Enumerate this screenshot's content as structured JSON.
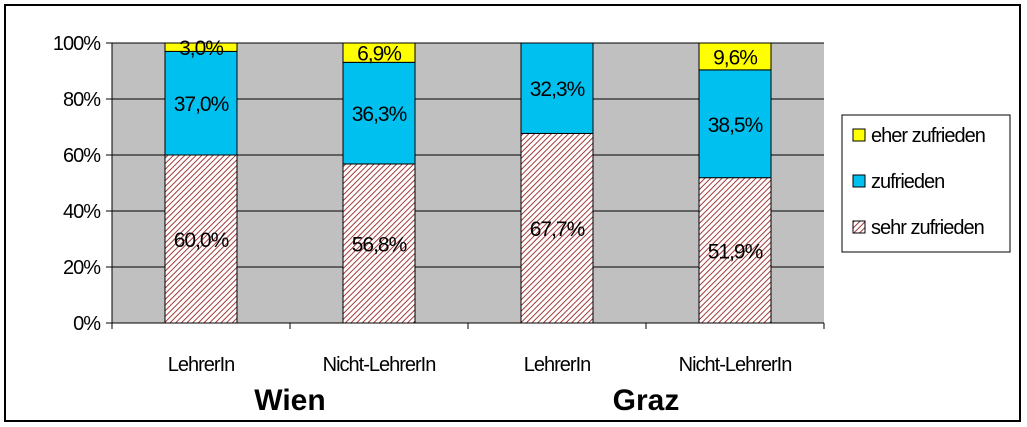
{
  "chart_data": {
    "type": "bar",
    "stacked": true,
    "percent_stacked": true,
    "categories": [
      "LehrerIn",
      "Nicht-LehrerIn",
      "LehrerIn",
      "Nicht-LehrerIn"
    ],
    "groups": [
      {
        "label": "Wien",
        "categories": [
          0,
          1
        ]
      },
      {
        "label": "Graz",
        "categories": [
          2,
          3
        ]
      }
    ],
    "series": [
      {
        "name": "sehr zufrieden",
        "values": [
          60.0,
          56.8,
          67.7,
          51.9
        ],
        "labels": [
          "60,0%",
          "56,8%",
          "67,7%",
          "51,9%"
        ],
        "color": "#a33a3a",
        "pattern": "diagonal-hatch"
      },
      {
        "name": "zufrieden",
        "values": [
          37.0,
          36.3,
          32.3,
          38.5
        ],
        "labels": [
          "37,0%",
          "36,3%",
          "32,3%",
          "38,5%"
        ],
        "color": "#00c0f0"
      },
      {
        "name": "eher zufrieden",
        "values": [
          3.0,
          6.9,
          0,
          9.6
        ],
        "labels": [
          "3,0%",
          "6,9%",
          "",
          "9,6%"
        ],
        "color": "#ffff00"
      }
    ],
    "y_ticks": [
      "0%",
      "20%",
      "40%",
      "60%",
      "80%",
      "100%"
    ],
    "ylim": [
      0,
      100
    ],
    "grid": true,
    "plot_background": "#c0c0c0",
    "legend": {
      "placement": "right",
      "order": [
        "eher zufrieden",
        "zufrieden",
        "sehr zufrieden"
      ]
    }
  }
}
